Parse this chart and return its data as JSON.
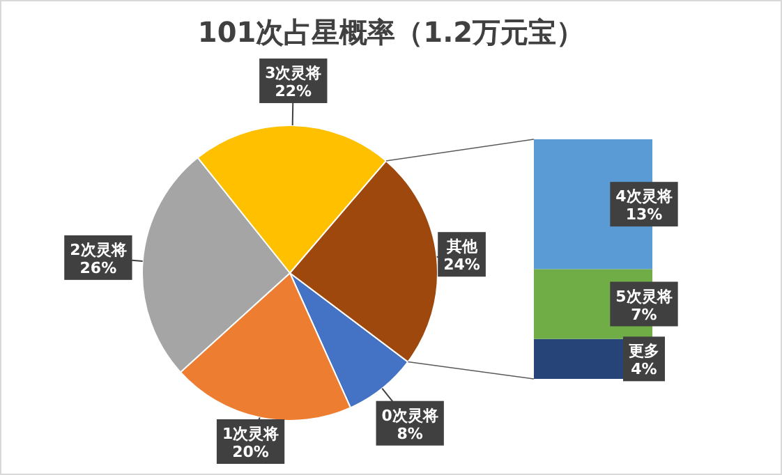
{
  "chart_data": [
    {
      "type": "pie",
      "title": "101次占星概率（1.2万元宝）",
      "categories": [
        "0次灵将",
        "1次灵将",
        "2次灵将",
        "3次灵将",
        "其他"
      ],
      "values": [
        8,
        20,
        26,
        22,
        24
      ],
      "value_labels": [
        "8%",
        "20%",
        "26%",
        "22%",
        "24%"
      ],
      "colors": [
        "#4472c4",
        "#ed7d31",
        "#a5a5a5",
        "#ffc000",
        "#9e480e"
      ]
    },
    {
      "type": "bar",
      "stacked": true,
      "categories": [
        null
      ],
      "series": [
        {
          "name": "更多",
          "color": "#264478",
          "values": [
            4
          ],
          "value_labels": [
            "4%"
          ]
        },
        {
          "name": "5次灵将",
          "color": "#70ad47",
          "values": [
            7
          ],
          "value_labels": [
            "7%"
          ]
        },
        {
          "name": "4次灵将",
          "color": "#5b9bd5",
          "values": [
            13
          ],
          "value_labels": [
            "13%"
          ]
        }
      ]
    }
  ]
}
